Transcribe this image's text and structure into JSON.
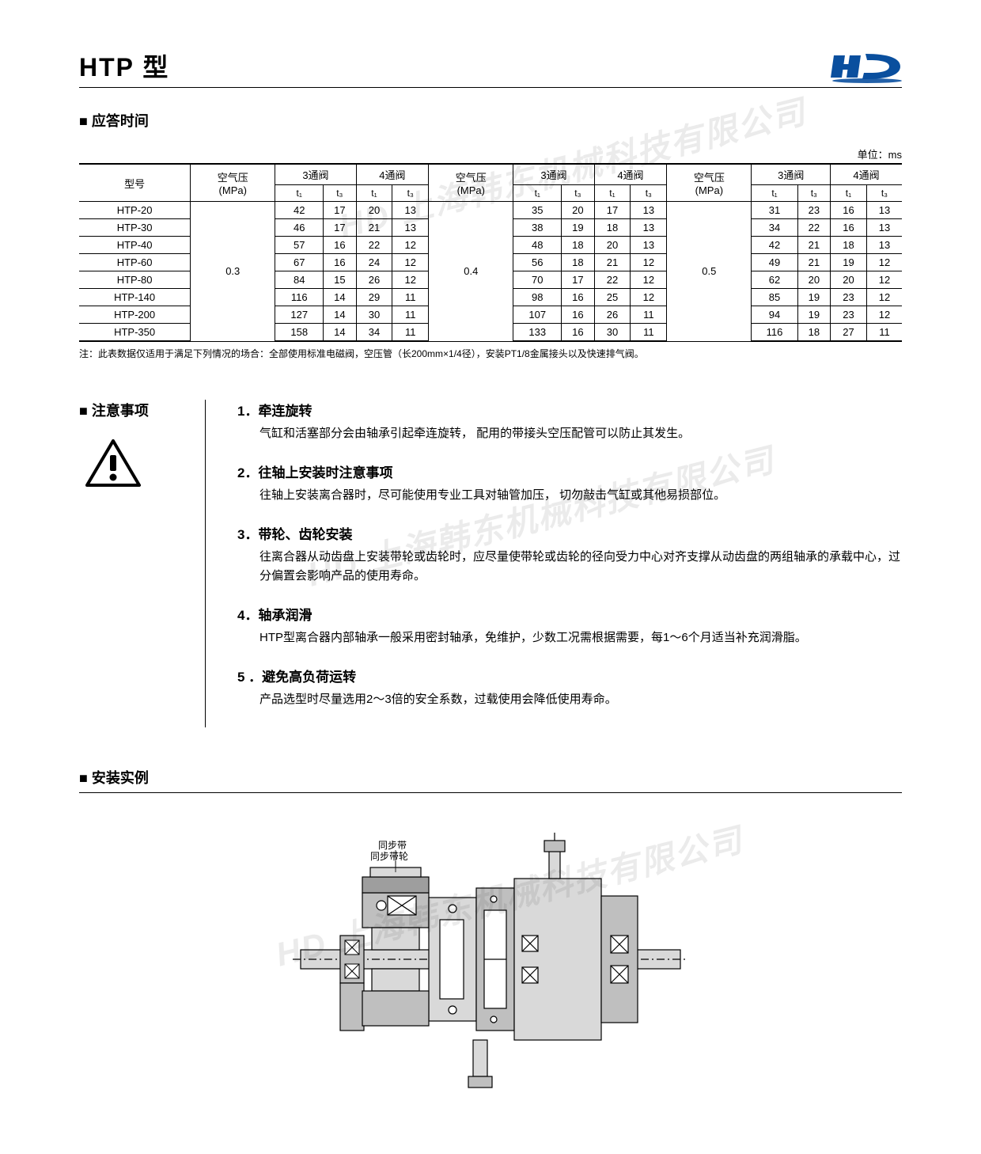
{
  "title": "HTP 型",
  "logo": {
    "color": "#0a4f9e"
  },
  "watermark_text": "HD 上海韩东机械科技有限公司",
  "section_response": {
    "heading": "应答时间",
    "unit_label": "单位：ms",
    "col_model": "型号",
    "col_pressure": "空气压\n(MPa)",
    "col_3valve": "3通阀",
    "col_4valve": "4通阀",
    "sub_t1": "t₁",
    "sub_t3": "t₃",
    "pressure_groups": [
      "0.3",
      "0.4",
      "0.5"
    ],
    "models": [
      "HTP-20",
      "HTP-30",
      "HTP-40",
      "HTP-60",
      "HTP-80",
      "HTP-140",
      "HTP-200",
      "HTP-350"
    ],
    "data": {
      "g0": [
        [
          42,
          17,
          20,
          13
        ],
        [
          46,
          17,
          21,
          13
        ],
        [
          57,
          16,
          22,
          12
        ],
        [
          67,
          16,
          24,
          12
        ],
        [
          84,
          15,
          26,
          12
        ],
        [
          116,
          14,
          29,
          11
        ],
        [
          127,
          14,
          30,
          11
        ],
        [
          158,
          14,
          34,
          11
        ]
      ],
      "g1": [
        [
          35,
          20,
          17,
          13
        ],
        [
          38,
          19,
          18,
          13
        ],
        [
          48,
          18,
          20,
          13
        ],
        [
          56,
          18,
          21,
          12
        ],
        [
          70,
          17,
          22,
          12
        ],
        [
          98,
          16,
          25,
          12
        ],
        [
          107,
          16,
          26,
          11
        ],
        [
          133,
          16,
          30,
          11
        ]
      ],
      "g2": [
        [
          31,
          23,
          16,
          13
        ],
        [
          34,
          22,
          16,
          13
        ],
        [
          42,
          21,
          18,
          13
        ],
        [
          49,
          21,
          19,
          12
        ],
        [
          62,
          20,
          20,
          12
        ],
        [
          85,
          19,
          23,
          12
        ],
        [
          94,
          19,
          23,
          12
        ],
        [
          116,
          18,
          27,
          11
        ]
      ]
    },
    "footnote": "注：此表数据仅适用于满足下列情况的场合：全部使用标准电磁阀，空压管（长200mm×1/4径），安装PT1/8金属接头以及快速排气阀。"
  },
  "section_precautions": {
    "heading": "注意事项",
    "items": [
      {
        "num": "1．",
        "title": "牵连旋转",
        "body": "气缸和活塞部分会由轴承引起牵连旋转，  配用的带接头空压配管可以防止其发生。"
      },
      {
        "num": "2．",
        "title": "往轴上安装时注意事项",
        "body": "往轴上安装离合器时，尽可能使用专业工具对轴管加压，  切勿敲击气缸或其他易损部位。"
      },
      {
        "num": "3．",
        "title": "带轮、齿轮安装",
        "body": "往离合器从动齿盘上安装带轮或齿轮时，应尽量使带轮或齿轮的径向受力中心对齐支撑从动齿盘的两组轴承的承载中心，过分偏置会影响产品的使用寿命。"
      },
      {
        "num": "4．",
        "title": "轴承润滑",
        "body": "HTP型离合器内部轴承一般采用密封轴承，免维护，少数工况需根据需要，每1～6个月适当补充润滑脂。"
      },
      {
        "num": "5 ．",
        "title": "避免高负荷运转",
        "body": "产品选型时尽量选用2～3倍的安全系数，过载使用会降低使用寿命。"
      }
    ]
  },
  "section_install": {
    "heading": "安装实例",
    "labels": {
      "belt": "同步带",
      "pulley": "同步带轮"
    }
  },
  "colors": {
    "text": "#000000",
    "border": "#000000",
    "diagram_fill": "#d9d9d9",
    "diagram_fill2": "#bfbfbf",
    "diagram_fill3": "#9e9e9e",
    "diagram_stroke": "#000000"
  }
}
